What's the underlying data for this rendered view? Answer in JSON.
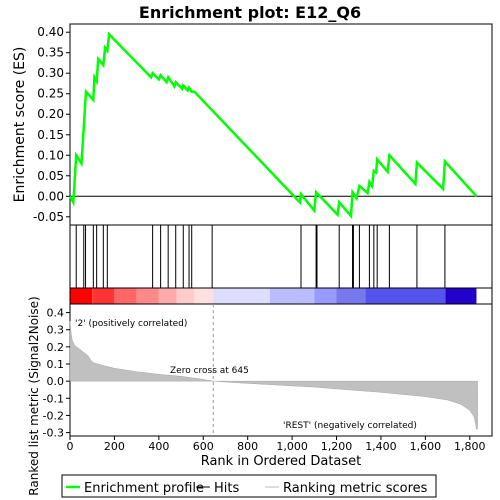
{
  "chart_data": {
    "type": "line",
    "title": "Enrichment plot: E12_Q6",
    "top_panel": {
      "ylabel": "Enrichment score (ES)",
      "ylim": [
        -0.07,
        0.42
      ],
      "yticks": [
        -0.05,
        0.0,
        0.05,
        0.1,
        0.15,
        0.2,
        0.25,
        0.3,
        0.35,
        0.4
      ],
      "ytick_labels": [
        "-0.05",
        "0.00",
        "0.05",
        "0.10",
        "0.15",
        "0.20",
        "0.25",
        "0.30",
        "0.35",
        "0.40"
      ],
      "series_color": "#00ff00",
      "points": [
        [
          0,
          0.0
        ],
        [
          15,
          -0.015
        ],
        [
          28,
          0.1
        ],
        [
          52,
          0.08
        ],
        [
          62,
          0.17
        ],
        [
          72,
          0.255
        ],
        [
          105,
          0.235
        ],
        [
          110,
          0.29
        ],
        [
          120,
          0.28
        ],
        [
          127,
          0.335
        ],
        [
          150,
          0.32
        ],
        [
          158,
          0.362
        ],
        [
          168,
          0.355
        ],
        [
          176,
          0.395
        ],
        [
          365,
          0.29
        ],
        [
          372,
          0.3
        ],
        [
          400,
          0.285
        ],
        [
          408,
          0.295
        ],
        [
          435,
          0.278
        ],
        [
          442,
          0.29
        ],
        [
          470,
          0.268
        ],
        [
          476,
          0.278
        ],
        [
          505,
          0.262
        ],
        [
          510,
          0.27
        ],
        [
          530,
          0.258
        ],
        [
          536,
          0.265
        ],
        [
          548,
          0.255
        ],
        [
          560,
          0.255
        ],
        [
          1035,
          -0.015
        ],
        [
          1040,
          0.005
        ],
        [
          1100,
          -0.035
        ],
        [
          1108,
          0.01
        ],
        [
          1205,
          -0.045
        ],
        [
          1212,
          -0.015
        ],
        [
          1265,
          -0.048
        ],
        [
          1272,
          0.01
        ],
        [
          1290,
          -0.005
        ],
        [
          1303,
          0.025
        ],
        [
          1340,
          0.008
        ],
        [
          1348,
          0.035
        ],
        [
          1360,
          0.025
        ],
        [
          1368,
          0.062
        ],
        [
          1378,
          0.058
        ],
        [
          1383,
          0.09
        ],
        [
          1430,
          0.06
        ],
        [
          1438,
          0.1
        ],
        [
          1555,
          0.03
        ],
        [
          1562,
          0.082
        ],
        [
          1680,
          0.018
        ],
        [
          1688,
          0.085
        ],
        [
          1830,
          0.0
        ]
      ]
    },
    "hits": [
      28,
      62,
      70,
      105,
      120,
      150,
      168,
      372,
      408,
      442,
      476,
      510,
      536,
      548,
      640,
      1040,
      1108,
      1112,
      1212,
      1272,
      1276,
      1303,
      1348,
      1368,
      1383,
      1438,
      1562,
      1688
    ],
    "x_range": [
      0,
      1900
    ],
    "xticks": [
      0,
      200,
      400,
      600,
      800,
      1000,
      1200,
      1400,
      1600,
      1800
    ],
    "xtick_labels": [
      "0",
      "200",
      "400",
      "600",
      "800",
      "1,000",
      "1,200",
      "1,400",
      "1,600",
      "1,800"
    ],
    "bottom_panel": {
      "ylabel": "Ranked list metric (Signal2Noise)",
      "ylim": [
        -0.32,
        0.45
      ],
      "yticks": [
        -0.3,
        -0.2,
        -0.1,
        0.0,
        0.1,
        0.2,
        0.3,
        0.4
      ],
      "ytick_labels": [
        "-0.3",
        "-0.2",
        "-0.1",
        "0.0",
        "0.1",
        "0.2",
        "0.3",
        "0.4"
      ],
      "xlabel": "Rank in Ordered Dataset",
      "metric_curve": [
        [
          0,
          0.35
        ],
        [
          5,
          0.28
        ],
        [
          10,
          0.24
        ],
        [
          20,
          0.21
        ],
        [
          40,
          0.19
        ],
        [
          60,
          0.17
        ],
        [
          80,
          0.15
        ],
        [
          95,
          0.12
        ],
        [
          110,
          0.105
        ],
        [
          140,
          0.095
        ],
        [
          200,
          0.075
        ],
        [
          300,
          0.055
        ],
        [
          400,
          0.04
        ],
        [
          500,
          0.028
        ],
        [
          600,
          0.01
        ],
        [
          645,
          0.0
        ],
        [
          700,
          -0.005
        ],
        [
          800,
          -0.013
        ],
        [
          900,
          -0.02
        ],
        [
          1000,
          -0.028
        ],
        [
          1100,
          -0.035
        ],
        [
          1200,
          -0.045
        ],
        [
          1300,
          -0.055
        ],
        [
          1400,
          -0.065
        ],
        [
          1500,
          -0.078
        ],
        [
          1600,
          -0.09
        ],
        [
          1700,
          -0.11
        ],
        [
          1760,
          -0.135
        ],
        [
          1800,
          -0.17
        ],
        [
          1820,
          -0.21
        ],
        [
          1830,
          -0.28
        ],
        [
          1835,
          -0.28
        ]
      ],
      "zero_cross_label": "Zero cross at 645",
      "zero_cross": 645,
      "pos_label": "'2' (positively correlated)",
      "neg_label": "'REST' (negatively correlated)"
    },
    "heat_bands": [
      [
        0,
        100,
        "#ff0000"
      ],
      [
        100,
        200,
        "#ff3333"
      ],
      [
        200,
        300,
        "#ff6666"
      ],
      [
        300,
        400,
        "#ff8888"
      ],
      [
        400,
        480,
        "#ffaaaa"
      ],
      [
        480,
        560,
        "#ffcccc"
      ],
      [
        560,
        645,
        "#ffe0e0"
      ],
      [
        645,
        900,
        "#ddddff"
      ],
      [
        900,
        1100,
        "#bbbbff"
      ],
      [
        1100,
        1200,
        "#9999ff"
      ],
      [
        1200,
        1330,
        "#7777ee"
      ],
      [
        1330,
        1690,
        "#5555ee"
      ],
      [
        1690,
        1830,
        "#2200cc"
      ]
    ],
    "legend": {
      "items": [
        "Enrichment profile",
        "Hits",
        "Ranking metric scores"
      ],
      "colors": [
        "#00ff00",
        "#000000",
        "#bbbbbb"
      ]
    }
  }
}
